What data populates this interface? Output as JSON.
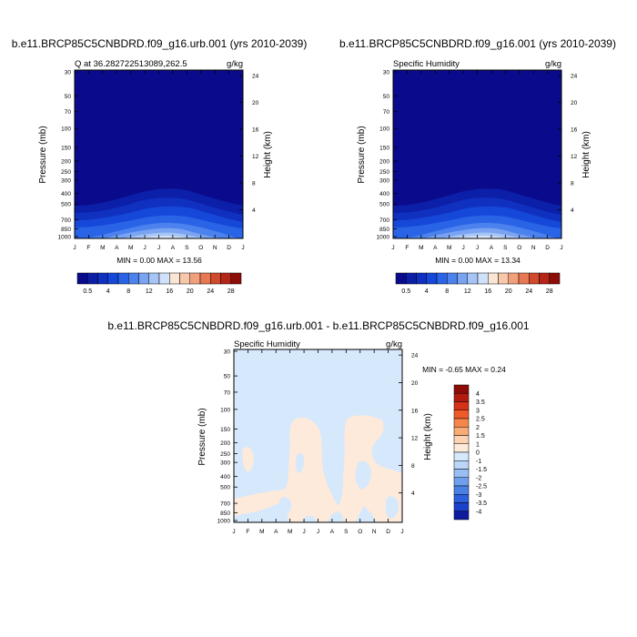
{
  "panels": [
    {
      "title": "b.e11.BRCP85C5CNBDRD.f09_g16.urb.001 (yrs 2010-2039)",
      "left_label": "Q at 36.2827225130​89,262.5",
      "units": "g/kg",
      "y_title": "Pressure (mb)",
      "y2_title": "Height (km)",
      "min_max_text": "MIN =   0.00 MAX =  13.56"
    },
    {
      "title": "b.e11.BRCP85C5CNBDRD.f09_g16.001 (yrs 2010-2039)",
      "left_label": "Specific Humidity",
      "units": "g/kg",
      "y_title": "Pressure (mb)",
      "y2_title": "Height (km)",
      "min_max_text": "MIN =   0.00 MAX =  13.34"
    },
    {
      "title": "b.e11.BRCP85C5CNBDRD.f09_g16.urb.001 - b.e11.BRCP85C5CNBDRD.f09_g16.001",
      "left_label": "Specific Humidity",
      "units": "g/kg",
      "y_title": "Pressure (mb)",
      "y2_title": "Height (km)",
      "min_max_text": "MIN =  -0.65 MAX =   0.24"
    }
  ],
  "chart_data": [
    {
      "type": "heatmap",
      "title": "b.e11.BRCP85C5CNBDRD.f09_g16.urb.001 (yrs 2010-2039)",
      "subtitle": "Q at 36.282722513089,262.5",
      "units": "g/kg",
      "xlabel": "",
      "ylabel": "Pressure (mb)",
      "y2label": "Height (km)",
      "x_ticks": [
        "J",
        "F",
        "M",
        "A",
        "M",
        "J",
        "J",
        "A",
        "S",
        "O",
        "N",
        "D",
        "J"
      ],
      "y_ticks": [
        "30",
        "50",
        "70",
        "100",
        "150",
        "200",
        "250",
        "300",
        "400",
        "500",
        "700",
        "850",
        "1000"
      ],
      "y2_ticks": [
        "24",
        "20",
        "16",
        "12",
        "8",
        "4"
      ],
      "contour_levels": [
        0.5,
        2,
        4,
        6,
        8,
        10,
        12,
        14,
        16,
        18,
        20,
        22,
        24,
        26,
        28
      ],
      "colorbar_labels": [
        "0.5",
        "4",
        "8",
        "12",
        "16",
        "20",
        "24",
        "28"
      ],
      "min": 0.0,
      "max": 13.56,
      "approx_contour_tops_mb": [
        {
          "level": 0.5,
          "pressure_top_jan": 400,
          "pressure_top_jul": 330
        },
        {
          "level": 2,
          "pressure_top_jan": 520,
          "pressure_top_jul": 420
        },
        {
          "level": 4,
          "pressure_top_jan": 660,
          "pressure_top_jul": 520
        },
        {
          "level": 6,
          "pressure_top_jan": 800,
          "pressure_top_jul": 620
        },
        {
          "level": 8,
          "pressure_top_jan": 920,
          "pressure_top_jul": 720
        },
        {
          "level": 10,
          "pressure_top_jan": 1000,
          "pressure_top_jul": 820
        },
        {
          "level": 12,
          "pressure_top_jan": 1000,
          "pressure_top_jul": 900
        }
      ]
    },
    {
      "type": "heatmap",
      "title": "b.e11.BRCP85C5CNBDRD.f09_g16.001 (yrs 2010-2039)",
      "subtitle": "Specific Humidity",
      "units": "g/kg",
      "xlabel": "",
      "ylabel": "Pressure (mb)",
      "y2label": "Height (km)",
      "x_ticks": [
        "J",
        "F",
        "M",
        "A",
        "M",
        "J",
        "J",
        "A",
        "S",
        "O",
        "N",
        "D",
        "J"
      ],
      "y_ticks": [
        "30",
        "50",
        "70",
        "100",
        "150",
        "200",
        "250",
        "300",
        "400",
        "500",
        "700",
        "850",
        "1000"
      ],
      "y2_ticks": [
        "24",
        "20",
        "16",
        "12",
        "8",
        "4"
      ],
      "contour_levels": [
        0.5,
        2,
        4,
        6,
        8,
        10,
        12,
        14,
        16,
        18,
        20,
        22,
        24,
        26,
        28
      ],
      "colorbar_labels": [
        "0.5",
        "4",
        "8",
        "12",
        "16",
        "20",
        "24",
        "28"
      ],
      "min": 0.0,
      "max": 13.34
    },
    {
      "type": "heatmap",
      "title": "b.e11.BRCP85C5CNBDRD.f09_g16.urb.001 - b.e11.BRCP85C5CNBDRD.f09_g16.001",
      "subtitle": "Specific Humidity",
      "units": "g/kg",
      "xlabel": "",
      "ylabel": "Pressure (mb)",
      "y2label": "Height (km)",
      "x_ticks": [
        "J",
        "F",
        "M",
        "A",
        "M",
        "J",
        "J",
        "A",
        "S",
        "O",
        "N",
        "D",
        "J"
      ],
      "y_ticks": [
        "30",
        "50",
        "70",
        "100",
        "150",
        "200",
        "250",
        "300",
        "400",
        "500",
        "700",
        "850",
        "1000"
      ],
      "y2_ticks": [
        "24",
        "20",
        "16",
        "12",
        "8",
        "4"
      ],
      "contour_levels": [
        -4,
        -3.5,
        -3,
        -2.5,
        -2,
        -1.5,
        -1,
        0,
        1,
        1.5,
        2,
        2.5,
        3,
        3.5,
        4
      ],
      "colorbar_labels": [
        "4",
        "3.5",
        "3",
        "2.5",
        "2",
        "1.5",
        "1",
        "0",
        "-1",
        "-1.5",
        "-2",
        "-2.5",
        "-3",
        "-3.5",
        "-4"
      ],
      "min": -0.65,
      "max": 0.24
    }
  ],
  "colors": {
    "seq_cmap": [
      "#0a0a8c",
      "#0c1fa8",
      "#1030c0",
      "#1548d8",
      "#2a64e6",
      "#4c82ee",
      "#7aa4f2",
      "#a6c4f6",
      "#d0e2fa",
      "#fbe6d6",
      "#f8c8aa",
      "#f2a07c",
      "#e67852",
      "#d24a2c",
      "#b42616",
      "#8c0c08"
    ],
    "div_cmap": [
      "#8c0c08",
      "#b41b10",
      "#d63219",
      "#ee5a2a",
      "#f58549",
      "#f9ab76",
      "#fcd3b2",
      "#fdeadb",
      "#d6e8fb",
      "#bcd6f8",
      "#98bef3",
      "#6d9fec",
      "#4a7fe5",
      "#2c5fdc",
      "#1a40cc",
      "#0c1c9c"
    ],
    "diff_background": "#d6e8fb",
    "diff_positive": "#fdeadb"
  }
}
